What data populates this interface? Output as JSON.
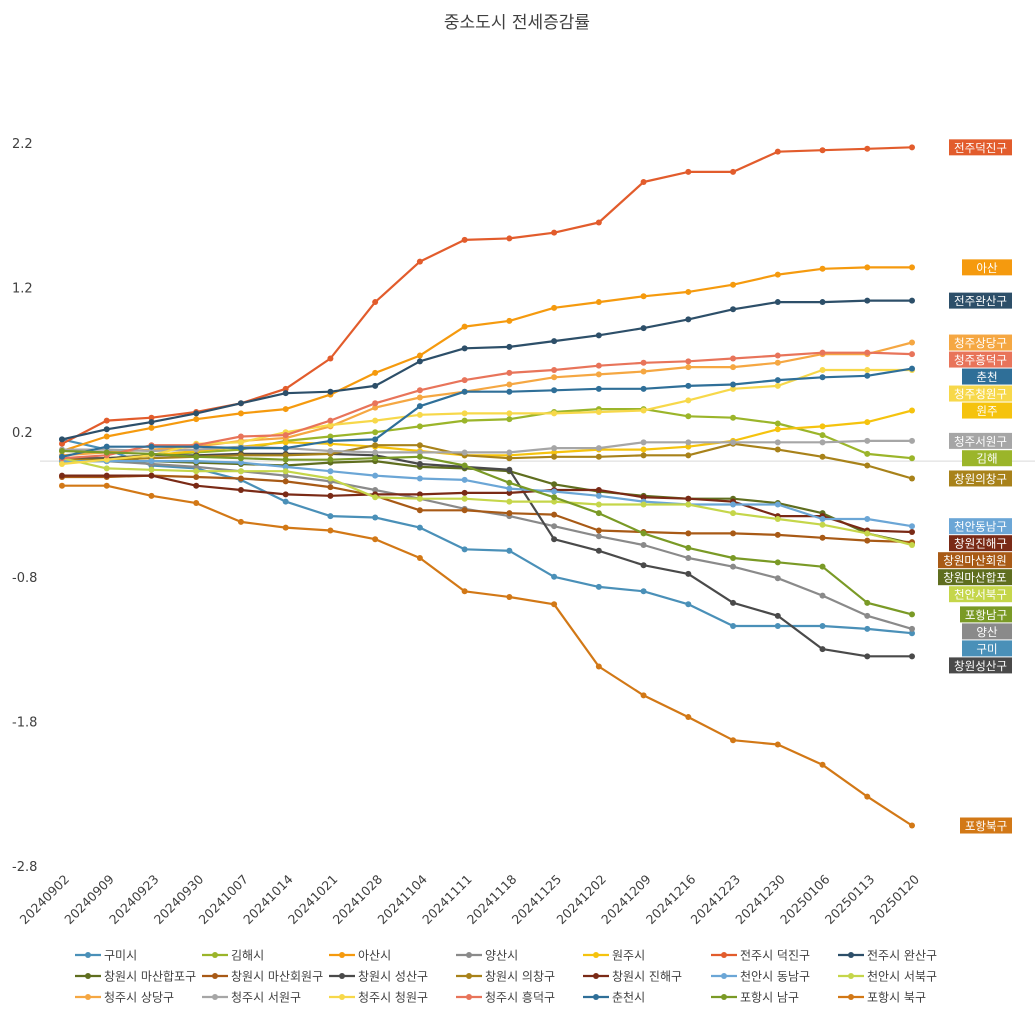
{
  "chart_data": {
    "type": "line",
    "title": "중소도시 전세증감률",
    "xlabel": "",
    "ylabel": "",
    "ylim": [
      -2.8,
      2.2
    ],
    "yticks": [
      2.2,
      1.2,
      0.2,
      -0.8,
      -1.8,
      -2.8
    ],
    "x": [
      "20240902",
      "20240909",
      "20240923",
      "20240930",
      "20241007",
      "20241014",
      "20241021",
      "20241028",
      "20241104",
      "20241111",
      "20241118",
      "20241125",
      "20241202",
      "20241209",
      "20241216",
      "20241223",
      "20241230",
      "20250106",
      "20250113",
      "20250120"
    ],
    "series": [
      {
        "name": "구미시",
        "label": "구미",
        "color": "#4a90b8",
        "values": [
          0.15,
          0.08,
          -0.03,
          -0.05,
          -0.13,
          -0.28,
          -0.38,
          -0.39,
          -0.46,
          -0.61,
          -0.62,
          -0.8,
          -0.87,
          -0.9,
          -0.99,
          -1.14,
          -1.14,
          -1.14,
          -1.16,
          -1.19
        ]
      },
      {
        "name": "김해시",
        "label": "김해",
        "color": "#9bb52a",
        "values": [
          0.0,
          0.02,
          0.04,
          0.06,
          0.08,
          0.14,
          0.17,
          0.2,
          0.24,
          0.28,
          0.29,
          0.34,
          0.36,
          0.36,
          0.31,
          0.3,
          0.26,
          0.18,
          0.05,
          0.02
        ]
      },
      {
        "name": "아산시",
        "label": "아산",
        "color": "#f59a0e",
        "values": [
          0.07,
          0.17,
          0.23,
          0.29,
          0.33,
          0.36,
          0.46,
          0.61,
          0.73,
          0.93,
          0.97,
          1.06,
          1.1,
          1.14,
          1.17,
          1.22,
          1.29,
          1.33,
          1.34,
          1.34
        ]
      },
      {
        "name": "양산시",
        "label": "양산",
        "color": "#8a8a8a",
        "values": [
          0.02,
          0.0,
          -0.02,
          -0.04,
          -0.07,
          -0.1,
          -0.14,
          -0.2,
          -0.26,
          -0.33,
          -0.38,
          -0.45,
          -0.52,
          -0.58,
          -0.67,
          -0.73,
          -0.81,
          -0.93,
          -1.07,
          -1.16
        ]
      },
      {
        "name": "원주시",
        "label": "원주",
        "color": "#f5c30e",
        "values": [
          0.0,
          0.02,
          0.04,
          0.07,
          0.1,
          0.13,
          0.12,
          0.1,
          0.07,
          0.04,
          0.04,
          0.06,
          0.08,
          0.08,
          0.1,
          0.14,
          0.22,
          0.24,
          0.27,
          0.35
        ]
      },
      {
        "name": "전주시 덕진구",
        "label": "전주덕진구",
        "color": "#e25c2c",
        "values": [
          0.12,
          0.28,
          0.3,
          0.34,
          0.4,
          0.5,
          0.71,
          1.1,
          1.38,
          1.53,
          1.54,
          1.58,
          1.65,
          1.93,
          2.0,
          2.0,
          2.14,
          2.15,
          2.16,
          2.17
        ]
      },
      {
        "name": "전주시 완산구",
        "label": "전주완산구",
        "color": "#2d4f69",
        "values": [
          0.15,
          0.22,
          0.27,
          0.33,
          0.4,
          0.47,
          0.48,
          0.52,
          0.69,
          0.78,
          0.79,
          0.83,
          0.87,
          0.92,
          0.98,
          1.05,
          1.1,
          1.1,
          1.11,
          1.11
        ]
      },
      {
        "name": "창원시 마산합포구",
        "label": "창원마산합포",
        "color": "#5f6e1f",
        "values": [
          0.0,
          0.0,
          0.0,
          -0.01,
          -0.02,
          -0.03,
          -0.01,
          0.0,
          -0.04,
          -0.05,
          -0.07,
          -0.16,
          -0.21,
          -0.24,
          -0.26,
          -0.26,
          -0.29,
          -0.36,
          -0.5,
          -0.57
        ]
      },
      {
        "name": "창원시 마산회원구",
        "label": "창원마산회원",
        "color": "#a85a16",
        "values": [
          -0.11,
          -0.11,
          -0.1,
          -0.11,
          -0.12,
          -0.14,
          -0.18,
          -0.24,
          -0.34,
          -0.34,
          -0.36,
          -0.37,
          -0.48,
          -0.49,
          -0.5,
          -0.5,
          -0.51,
          -0.53,
          -0.55,
          -0.56
        ]
      },
      {
        "name": "창원시 성산구",
        "label": "창원성산구",
        "color": "#4a4a4a",
        "values": [
          0.02,
          0.02,
          0.04,
          0.04,
          0.05,
          0.05,
          0.05,
          0.04,
          -0.02,
          -0.04,
          -0.06,
          -0.54,
          -0.62,
          -0.72,
          -0.78,
          -0.98,
          -1.07,
          -1.3,
          -1.35,
          -1.35
        ]
      },
      {
        "name": "창원시 의창구",
        "label": "창원의창구",
        "color": "#a8821a",
        "values": [
          0.01,
          0.01,
          0.02,
          0.03,
          0.04,
          0.04,
          0.05,
          0.11,
          0.11,
          0.04,
          0.02,
          0.03,
          0.03,
          0.04,
          0.04,
          0.12,
          0.08,
          0.03,
          -0.03,
          -0.12
        ]
      },
      {
        "name": "창원시 진해구",
        "label": "창원진해구",
        "color": "#7a2a16",
        "values": [
          -0.1,
          -0.1,
          -0.1,
          -0.17,
          -0.2,
          -0.23,
          -0.24,
          -0.23,
          -0.23,
          -0.22,
          -0.22,
          -0.2,
          -0.2,
          -0.25,
          -0.26,
          -0.28,
          -0.38,
          -0.38,
          -0.48,
          -0.49
        ]
      },
      {
        "name": "천안시 동남구",
        "label": "천안동남구",
        "color": "#6ba6d6",
        "values": [
          0.0,
          0.0,
          0.0,
          0.0,
          -0.01,
          -0.04,
          -0.07,
          -0.1,
          -0.12,
          -0.13,
          -0.19,
          -0.21,
          -0.24,
          -0.28,
          -0.3,
          -0.3,
          -0.3,
          -0.4,
          -0.4,
          -0.45
        ]
      },
      {
        "name": "천안시 서북구",
        "label": "천안서북구",
        "color": "#c5d64a",
        "values": [
          0.02,
          -0.05,
          -0.06,
          -0.07,
          -0.07,
          -0.07,
          -0.12,
          -0.25,
          -0.26,
          -0.26,
          -0.28,
          -0.28,
          -0.3,
          -0.3,
          -0.3,
          -0.36,
          -0.4,
          -0.44,
          -0.5,
          -0.58
        ]
      },
      {
        "name": "청주시 상당구",
        "label": "청주상당구",
        "color": "#f5a742",
        "values": [
          0.04,
          0.06,
          0.08,
          0.1,
          0.14,
          0.16,
          0.24,
          0.37,
          0.44,
          0.48,
          0.53,
          0.58,
          0.6,
          0.62,
          0.65,
          0.65,
          0.68,
          0.74,
          0.74,
          0.82
        ]
      },
      {
        "name": "청주시 서원구",
        "label": "청주서원구",
        "color": "#a6a6a6",
        "values": [
          0.08,
          0.08,
          0.07,
          0.08,
          0.1,
          0.09,
          0.07,
          0.06,
          0.06,
          0.06,
          0.06,
          0.09,
          0.09,
          0.13,
          0.13,
          0.13,
          0.13,
          0.13,
          0.14,
          0.14
        ]
      },
      {
        "name": "청주시 청원구",
        "label": "청주청원구",
        "color": "#f7d84a",
        "values": [
          -0.02,
          0.01,
          0.04,
          0.12,
          0.13,
          0.2,
          0.25,
          0.28,
          0.32,
          0.33,
          0.33,
          0.33,
          0.34,
          0.35,
          0.42,
          0.5,
          0.52,
          0.63,
          0.63,
          0.63
        ]
      },
      {
        "name": "청주시 흥덕구",
        "label": "청주흥덕구",
        "color": "#e8745a",
        "values": [
          0.02,
          0.04,
          0.11,
          0.11,
          0.17,
          0.18,
          0.28,
          0.4,
          0.49,
          0.56,
          0.61,
          0.63,
          0.66,
          0.68,
          0.69,
          0.71,
          0.73,
          0.75,
          0.75,
          0.74
        ]
      },
      {
        "name": "춘천시",
        "label": "춘천",
        "color": "#2f6f98",
        "values": [
          0.03,
          0.1,
          0.1,
          0.1,
          0.09,
          0.09,
          0.14,
          0.15,
          0.38,
          0.48,
          0.48,
          0.49,
          0.5,
          0.5,
          0.52,
          0.53,
          0.56,
          0.58,
          0.59,
          0.64
        ]
      },
      {
        "name": "포항시 남구",
        "label": "포항남구",
        "color": "#7a9a26",
        "values": [
          0.07,
          0.06,
          0.05,
          0.03,
          0.02,
          0.01,
          0.01,
          0.02,
          0.03,
          -0.03,
          -0.15,
          -0.25,
          -0.36,
          -0.5,
          -0.6,
          -0.67,
          -0.7,
          -0.73,
          -0.98,
          -1.06
        ]
      },
      {
        "name": "포항시 북구",
        "label": "포항북구",
        "color": "#d27816",
        "values": [
          -0.17,
          -0.17,
          -0.24,
          -0.29,
          -0.42,
          -0.46,
          -0.48,
          -0.54,
          -0.67,
          -0.9,
          -0.94,
          -0.99,
          -1.42,
          -1.62,
          -1.77,
          -1.93,
          -1.96,
          -2.1,
          -2.32,
          -2.52
        ]
      }
    ]
  }
}
